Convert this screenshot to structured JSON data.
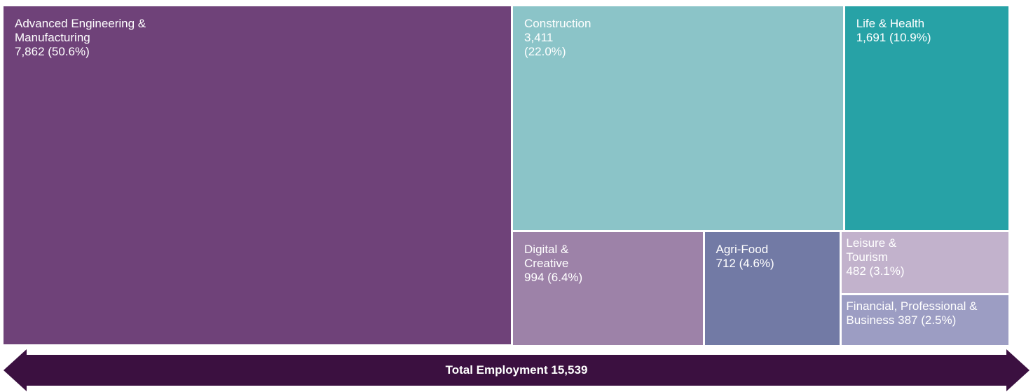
{
  "chart_data": {
    "type": "treemap",
    "categories": [
      "Advanced Engineering & Manufacturing",
      "Construction",
      "Life & Health",
      "Digital & Creative",
      "Agri-Food",
      "Leisure & Tourism",
      "Financial, Professional & Business"
    ],
    "values": [
      7862,
      3411,
      1691,
      994,
      712,
      482,
      387
    ],
    "value_labels": [
      "7,862 (50.6%)",
      "3,411 (22.0%)",
      "1,691 (10.9%)",
      "994 (6.4%)",
      "712 (4.6%)",
      "482 (3.1%)",
      "387 (2.5%)"
    ],
    "colors": [
      "#6f4279",
      "#8bc4c8",
      "#27a2a6",
      "#9d82a8",
      "#727aa5",
      "#c2b2cc",
      "#9c9dc3"
    ],
    "total_label": "Total Employment 15,539"
  }
}
